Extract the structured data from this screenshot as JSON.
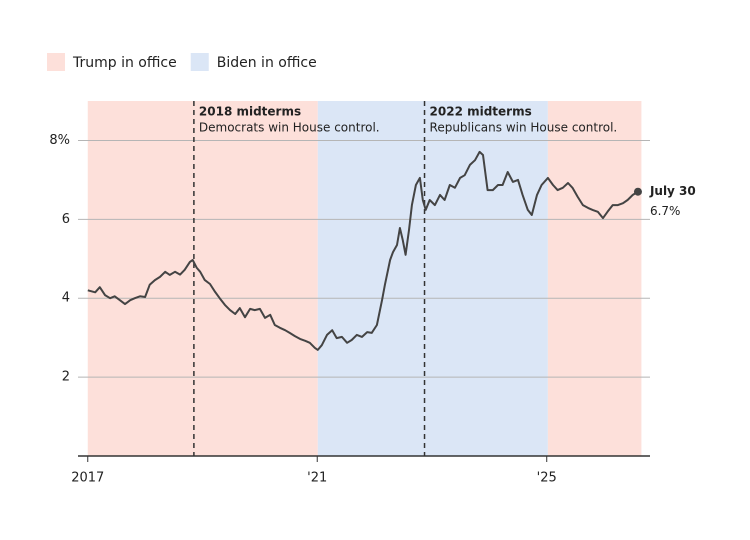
{
  "chart_data": {
    "type": "line",
    "legend": [
      {
        "name": "Trump in office",
        "color": "#fde0da"
      },
      {
        "name": "Biden in office",
        "color": "#dbe6f6"
      }
    ],
    "shaded_periods": [
      {
        "start": 2017.0,
        "end": 2021.01,
        "color": "#fde0da"
      },
      {
        "start": 2021.01,
        "end": 2025.02,
        "color": "#dbe6f6"
      },
      {
        "start": 2025.02,
        "end": 2026.65,
        "color": "#fde0da"
      }
    ],
    "annotations": [
      {
        "x": 2018.85,
        "title": "2018 midterms",
        "text": "Democrats win House control."
      },
      {
        "x": 2022.87,
        "title": "2022 midterms",
        "text": "Republicans win House control."
      }
    ],
    "end_label": "July 30",
    "xlim": [
      2016.83,
      2026.8
    ],
    "xticks": [
      2017,
      {
        "value": 2021,
        "label": "'21"
      },
      {
        "value": 2025,
        "label": "'25"
      }
    ],
    "ylim": [
      0,
      9
    ],
    "yticks": [
      {
        "value": 8,
        "label": "8%"
      },
      6,
      4,
      2
    ],
    "grid": true,
    "series": [
      {
        "color": "#444444",
        "x": [
          2017.0,
          2017.13,
          2017.21,
          2017.3,
          2017.39,
          2017.47,
          2017.56,
          2017.65,
          2017.74,
          2017.82,
          2017.91,
          2018.0,
          2018.08,
          2018.17,
          2018.26,
          2018.35,
          2018.43,
          2018.52,
          2018.61,
          2018.69,
          2018.78,
          2018.83,
          2018.9,
          2018.96,
          2019.04,
          2019.13,
          2019.22,
          2019.3,
          2019.39,
          2019.48,
          2019.57,
          2019.65,
          2019.74,
          2019.83,
          2019.91,
          2020.0,
          2020.09,
          2020.18,
          2020.26,
          2020.35,
          2020.44,
          2020.52,
          2020.61,
          2020.7,
          2020.79,
          2020.87,
          2020.96,
          2021.01,
          2021.08,
          2021.17,
          2021.26,
          2021.34,
          2021.43,
          2021.52,
          2021.6,
          2021.69,
          2021.78,
          2021.87,
          2021.95,
          2022.04,
          2022.13,
          2022.18,
          2022.27,
          2022.32,
          2022.39,
          2022.44,
          2022.49,
          2022.54,
          2022.6,
          2022.65,
          2022.72,
          2022.79,
          2022.84,
          2022.89,
          2022.96,
          2023.05,
          2023.14,
          2023.22,
          2023.31,
          2023.4,
          2023.49,
          2023.57,
          2023.66,
          2023.75,
          2023.83,
          2023.89,
          2023.97,
          2024.06,
          2024.15,
          2024.23,
          2024.32,
          2024.41,
          2024.5,
          2024.58,
          2024.67,
          2024.74,
          2024.83,
          2024.91,
          2025.02,
          2025.11,
          2025.19,
          2025.28,
          2025.37,
          2025.45,
          2025.54,
          2025.63,
          2025.72,
          2025.8,
          2025.89,
          2025.98,
          2026.06,
          2026.15,
          2026.24,
          2026.33,
          2026.41,
          2026.5,
          2026.59
        ],
        "values": [
          4.2,
          4.15,
          4.28,
          4.08,
          4.0,
          4.05,
          3.95,
          3.85,
          3.95,
          4.0,
          4.05,
          4.03,
          4.34,
          4.46,
          4.54,
          4.67,
          4.59,
          4.67,
          4.6,
          4.72,
          4.92,
          4.97,
          4.77,
          4.67,
          4.46,
          4.36,
          4.16,
          4.0,
          3.83,
          3.7,
          3.6,
          3.75,
          3.52,
          3.73,
          3.7,
          3.73,
          3.5,
          3.58,
          3.32,
          3.25,
          3.19,
          3.12,
          3.04,
          2.97,
          2.92,
          2.87,
          2.74,
          2.69,
          2.81,
          3.07,
          3.19,
          2.99,
          3.02,
          2.87,
          2.94,
          3.07,
          3.02,
          3.14,
          3.12,
          3.32,
          3.96,
          4.34,
          4.97,
          5.17,
          5.35,
          5.78,
          5.48,
          5.1,
          5.73,
          6.36,
          6.87,
          7.05,
          6.49,
          6.24,
          6.49,
          6.36,
          6.62,
          6.49,
          6.87,
          6.8,
          7.05,
          7.12,
          7.38,
          7.5,
          7.71,
          7.63,
          6.74,
          6.74,
          6.87,
          6.87,
          7.2,
          6.95,
          7.0,
          6.62,
          6.24,
          6.11,
          6.62,
          6.87,
          7.05,
          6.87,
          6.74,
          6.8,
          6.92,
          6.8,
          6.57,
          6.36,
          6.29,
          6.24,
          6.19,
          6.03,
          6.19,
          6.36,
          6.36,
          6.41,
          6.49,
          6.62,
          6.7
        ],
        "value_labels": [
          null,
          null,
          null,
          null,
          null,
          null,
          null,
          null,
          null,
          null,
          null,
          null,
          null,
          null,
          null,
          null,
          null,
          null,
          null,
          null,
          null,
          null,
          null,
          null,
          null,
          null,
          null,
          null,
          null,
          null,
          null,
          null,
          null,
          null,
          null,
          null,
          null,
          null,
          null,
          null,
          null,
          null,
          null,
          null,
          null,
          null,
          null,
          null,
          null,
          null,
          null,
          null,
          null,
          null,
          null,
          null,
          null,
          null,
          null,
          null,
          null,
          null,
          null,
          null,
          null,
          null,
          null,
          null,
          null,
          null,
          null,
          null,
          null,
          null,
          null,
          null,
          null,
          null,
          null,
          null,
          null,
          null,
          null,
          null,
          null,
          null,
          null,
          null,
          null,
          null,
          null,
          null,
          null,
          null,
          null,
          null,
          null,
          null,
          null,
          null,
          null,
          null,
          null,
          null,
          null,
          null,
          null,
          null,
          null,
          null,
          null,
          null,
          null,
          null,
          null,
          null,
          "6.7%"
        ]
      }
    ]
  }
}
